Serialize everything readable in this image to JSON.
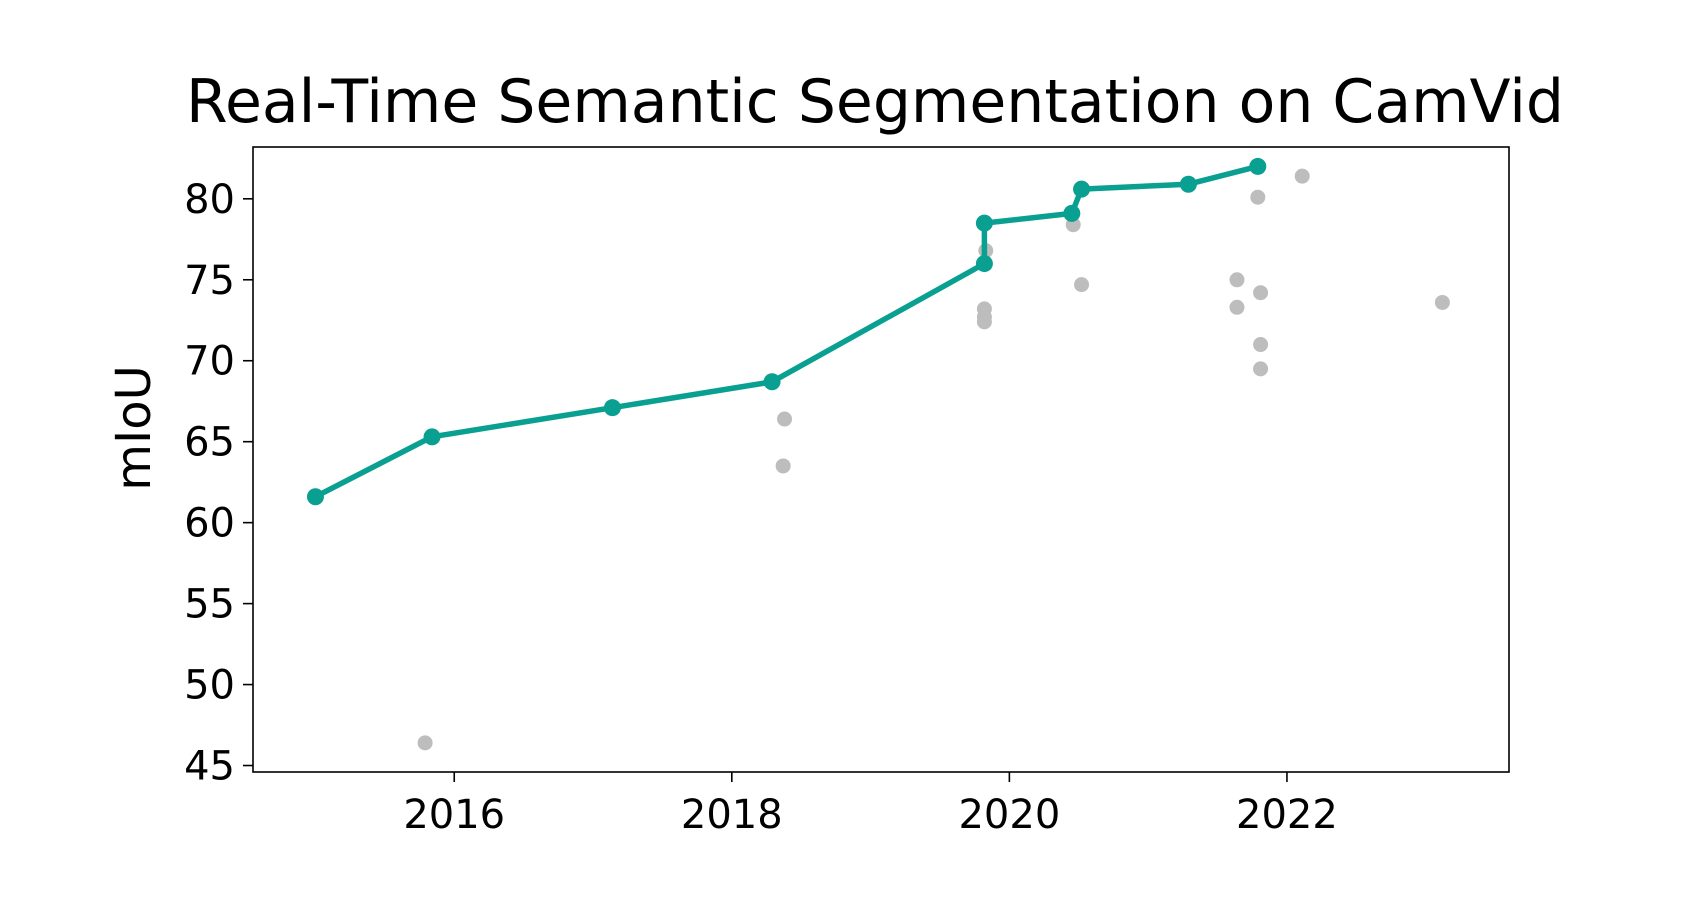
{
  "chart_data": {
    "type": "scatter",
    "title": "Real-Time Semantic Segmentation on CamVid",
    "xlabel": "",
    "ylabel": "mIoU",
    "xlim": [
      2014.55,
      2023.6
    ],
    "ylim": [
      44.6,
      83.2
    ],
    "xticks": [
      2016,
      2018,
      2020,
      2022
    ],
    "xtick_labels": [
      "2016",
      "2018",
      "2020",
      "2022"
    ],
    "yticks": [
      45,
      50,
      55,
      60,
      65,
      70,
      75,
      80
    ],
    "ytick_labels": [
      "45",
      "50",
      "55",
      "60",
      "65",
      "70",
      "75",
      "80"
    ],
    "grid": false,
    "series": [
      {
        "role": "state-of-the-art",
        "color": "#0aa091",
        "points": [
          [
            2015.0,
            61.6
          ],
          [
            2015.84,
            65.3
          ],
          [
            2017.14,
            67.1
          ],
          [
            2018.29,
            68.7
          ],
          [
            2019.82,
            76.0
          ],
          [
            2019.82,
            78.5
          ],
          [
            2020.45,
            79.1
          ],
          [
            2020.52,
            80.6
          ],
          [
            2021.29,
            80.9
          ],
          [
            2021.79,
            82.0
          ]
        ]
      },
      {
        "role": "other-methods",
        "color": "#bdbdbd",
        "points": [
          [
            2015.79,
            46.4
          ],
          [
            2018.37,
            63.5
          ],
          [
            2018.38,
            66.4
          ],
          [
            2019.82,
            72.4
          ],
          [
            2019.82,
            72.7
          ],
          [
            2019.82,
            73.2
          ],
          [
            2019.83,
            76.8
          ],
          [
            2020.46,
            78.4
          ],
          [
            2020.52,
            74.7
          ],
          [
            2021.64,
            73.3
          ],
          [
            2021.64,
            75.0
          ],
          [
            2021.79,
            80.1
          ],
          [
            2021.81,
            69.5
          ],
          [
            2021.81,
            71.0
          ],
          [
            2021.81,
            74.2
          ],
          [
            2022.11,
            81.4
          ],
          [
            2023.12,
            73.6
          ]
        ]
      }
    ]
  }
}
